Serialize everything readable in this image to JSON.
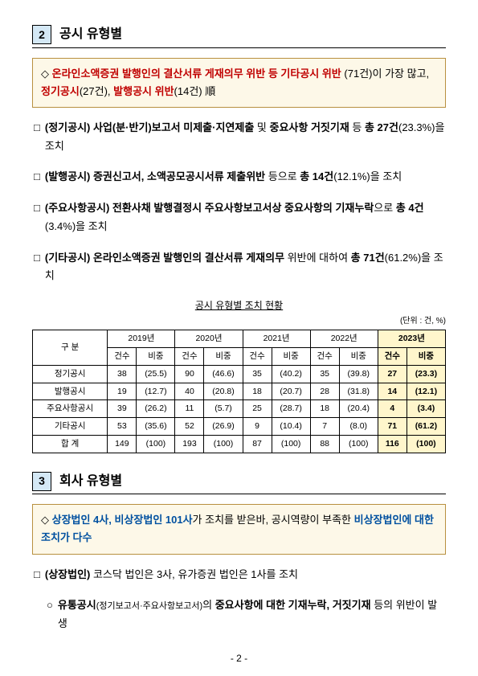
{
  "section2": {
    "num": "2",
    "title": "공시 유형별",
    "highlight": {
      "prefix": "◇ ",
      "t1": "온라인소액증권 발행인의 결산서류 게재의무 위반 등 기타공시 위반",
      "t2": "(71건)",
      "t3": "이 가장 많고, ",
      "t4": "정기공시",
      "t5": "(27건), ",
      "t6": "발행공시 위반",
      "t7": "(14건) 順"
    },
    "items": [
      {
        "lead": "(정기공시)  사업(분·반기)보고서  미제출·지연제출",
        "mid": " 및 ",
        "lead2": "중요사항 거짓기재",
        "tail": " 등 ",
        "bold": "총  27건",
        "rest": "(23.3%)을 조치"
      },
      {
        "lead": "(발행공시)  증권신고서, 소액공모공시서류 제출위반",
        "tail": " 등으로 ",
        "bold": "총  14건",
        "rest": "(12.1%)을 조치"
      },
      {
        "lead": "(주요사항공시)  전환사채 발행결정시 주요사항보고서상 중요사항의 기재누락",
        "tail": "으로 ",
        "bold": "총  4건",
        "rest": "(3.4%)을 조치"
      },
      {
        "lead": "(기타공시)  온라인소액증권 발행인의 결산서류 게재의무",
        "tail": " 위반에 대하여 ",
        "bold": "총  71건",
        "rest": "(61.2%)을 조치"
      }
    ],
    "table": {
      "caption": "공시 유형별 조치 현황",
      "unit": "(단위 : 건, %)",
      "header_row": "구  분",
      "years": [
        "2019년",
        "2020년",
        "2021년",
        "2022년",
        "2023년"
      ],
      "sub": [
        "건수",
        "비중"
      ],
      "rows": [
        {
          "label": "정기공시",
          "cells": [
            "38",
            "(25.5)",
            "90",
            "(46.6)",
            "35",
            "(40.2)",
            "35",
            "(39.8)",
            "27",
            "(23.3)"
          ]
        },
        {
          "label": "발행공시",
          "cells": [
            "19",
            "(12.7)",
            "40",
            "(20.8)",
            "18",
            "(20.7)",
            "28",
            "(31.8)",
            "14",
            "(12.1)"
          ]
        },
        {
          "label": "주요사항공시",
          "cells": [
            "39",
            "(26.2)",
            "11",
            "(5.7)",
            "25",
            "(28.7)",
            "18",
            "(20.4)",
            "4",
            "(3.4)"
          ]
        },
        {
          "label": "기타공시",
          "cells": [
            "53",
            "(35.6)",
            "52",
            "(26.9)",
            "9",
            "(10.4)",
            "7",
            "(8.0)",
            "71",
            "(61.2)"
          ]
        },
        {
          "label": "합    계",
          "cells": [
            "149",
            "(100)",
            "193",
            "(100)",
            "87",
            "(100)",
            "88",
            "(100)",
            "116",
            "(100)"
          ]
        }
      ]
    }
  },
  "section3": {
    "num": "3",
    "title": "회사 유형별",
    "highlight": {
      "prefix": "◇ ",
      "t1": "상장법인 4사, 비상장법인 101사",
      "t2": "가 조치를 받은바, 공시역량이 부족한 ",
      "t3": "비상장법인에 대한 조치가 다수"
    },
    "item1": {
      "lead": "(상장법인)",
      "rest": " 코스닥 법인은 3사, 유가증권 법인은 1사를 조치"
    },
    "sub1": {
      "t1": "유통공시",
      "t2": "(정기보고서·주요사항보고서)",
      "t3": "의 ",
      "t4": "중요사항에 대한 기재누락, 거짓기재",
      "t5": " 등의 위반이 발생"
    }
  },
  "pageNum": "- 2 -"
}
